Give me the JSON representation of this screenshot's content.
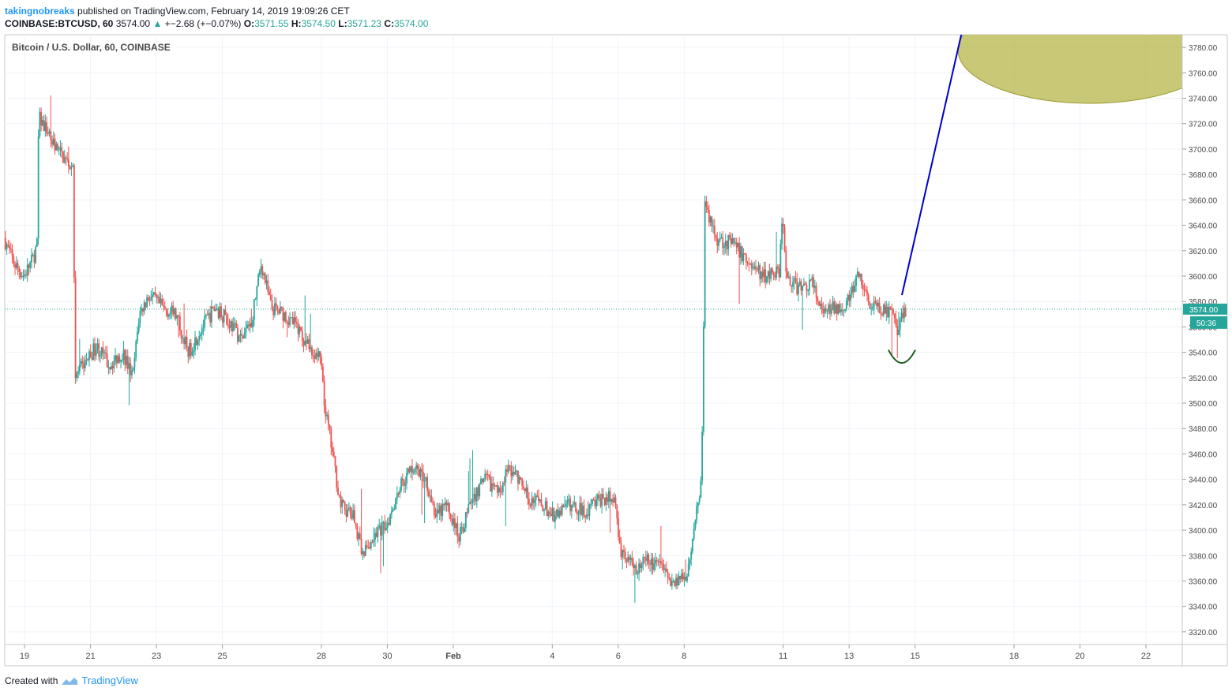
{
  "header": {
    "author": "takingnobreaks",
    "published_text": "published on TradingView.com, February 14, 2019 19:09:26 CET",
    "symbol": "COINBASE:BTCUSD, 60",
    "last": "3574.00",
    "change": "+−2.68 (+−0.07%)",
    "o_label": "O:",
    "o_value": "3571.55",
    "h_label": "H:",
    "h_value": "3574.50",
    "l_label": "L:",
    "l_value": "3571.23",
    "c_label": "C:",
    "c_value": "3574.00"
  },
  "footer": {
    "created_with": "Created with",
    "brand": "TradingView"
  },
  "chart_data": {
    "type": "candlestick",
    "title": "Bitcoin / U.S. Dollar, 60, COINBASE",
    "ylim": [
      3310,
      3790
    ],
    "y_ticks": [
      3320,
      3340,
      3360,
      3380,
      3400,
      3420,
      3440,
      3460,
      3480,
      3500,
      3520,
      3540,
      3560,
      3580,
      3600,
      3620,
      3640,
      3660,
      3680,
      3700,
      3720,
      3740,
      3760,
      3780
    ],
    "y_tick_labels": [
      "3320.00",
      "3340.00",
      "3360.00",
      "3380.00",
      "3400.00",
      "3420.00",
      "3440.00",
      "3460.00",
      "3480.00",
      "3500.00",
      "3520.00",
      "3540.00",
      "3560.00",
      "3580.00",
      "3600.00",
      "3620.00",
      "3640.00",
      "3660.00",
      "3680.00",
      "3700.00",
      "3720.00",
      "3740.00",
      "3760.00",
      "3780.00"
    ],
    "x_ticks": [
      {
        "day": 0,
        "label": "19"
      },
      {
        "day": 2,
        "label": "21"
      },
      {
        "day": 4,
        "label": "23"
      },
      {
        "day": 6,
        "label": "25"
      },
      {
        "day": 9,
        "label": "28"
      },
      {
        "day": 11,
        "label": "30"
      },
      {
        "day": 13,
        "label": "Feb"
      },
      {
        "day": 16,
        "label": "4"
      },
      {
        "day": 18,
        "label": "6"
      },
      {
        "day": 20,
        "label": "8"
      },
      {
        "day": 23,
        "label": "11"
      },
      {
        "day": 25,
        "label": "13"
      },
      {
        "day": 27,
        "label": "15"
      },
      {
        "day": 30,
        "label": "18"
      },
      {
        "day": 32,
        "label": "20"
      },
      {
        "day": 34,
        "label": "22"
      }
    ],
    "x_range_days": [
      -0.6,
      35.1
    ],
    "price_path": [
      [
        -0.6,
        3630
      ],
      [
        -0.3,
        3610
      ],
      [
        0.0,
        3600
      ],
      [
        0.3,
        3615
      ],
      [
        0.4,
        3625
      ],
      [
        0.45,
        3725
      ],
      [
        0.7,
        3715
      ],
      [
        1.0,
        3700
      ],
      [
        1.3,
        3690
      ],
      [
        1.5,
        3688
      ],
      [
        1.55,
        3520
      ],
      [
        1.8,
        3530
      ],
      [
        2.2,
        3545
      ],
      [
        2.6,
        3530
      ],
      [
        3.0,
        3540
      ],
      [
        3.3,
        3520
      ],
      [
        3.5,
        3570
      ],
      [
        3.8,
        3585
      ],
      [
        4.2,
        3575
      ],
      [
        4.6,
        3570
      ],
      [
        5.0,
        3540
      ],
      [
        5.4,
        3560
      ],
      [
        5.8,
        3575
      ],
      [
        6.2,
        3565
      ],
      [
        6.6,
        3550
      ],
      [
        6.9,
        3565
      ],
      [
        7.2,
        3610
      ],
      [
        7.5,
        3575
      ],
      [
        7.9,
        3570
      ],
      [
        8.3,
        3560
      ],
      [
        8.7,
        3540
      ],
      [
        9.0,
        3535
      ],
      [
        9.1,
        3500
      ],
      [
        9.3,
        3470
      ],
      [
        9.6,
        3420
      ],
      [
        10.0,
        3410
      ],
      [
        10.3,
        3380
      ],
      [
        10.6,
        3395
      ],
      [
        11.0,
        3405
      ],
      [
        11.4,
        3435
      ],
      [
        11.8,
        3450
      ],
      [
        12.2,
        3440
      ],
      [
        12.5,
        3410
      ],
      [
        12.8,
        3420
      ],
      [
        13.2,
        3395
      ],
      [
        13.6,
        3425
      ],
      [
        14.0,
        3440
      ],
      [
        14.4,
        3430
      ],
      [
        14.7,
        3450
      ],
      [
        15.0,
        3440
      ],
      [
        15.3,
        3425
      ],
      [
        15.7,
        3420
      ],
      [
        16.1,
        3410
      ],
      [
        16.5,
        3420
      ],
      [
        17.0,
        3415
      ],
      [
        17.5,
        3425
      ],
      [
        17.9,
        3425
      ],
      [
        18.1,
        3385
      ],
      [
        18.5,
        3370
      ],
      [
        18.9,
        3375
      ],
      [
        19.3,
        3370
      ],
      [
        19.7,
        3360
      ],
      [
        20.1,
        3365
      ],
      [
        20.3,
        3400
      ],
      [
        20.55,
        3440
      ],
      [
        20.65,
        3655
      ],
      [
        21.0,
        3630
      ],
      [
        21.5,
        3625
      ],
      [
        22.0,
        3610
      ],
      [
        22.4,
        3600
      ],
      [
        22.9,
        3605
      ],
      [
        23.0,
        3650
      ],
      [
        23.1,
        3600
      ],
      [
        23.5,
        3590
      ],
      [
        23.9,
        3595
      ],
      [
        24.2,
        3570
      ],
      [
        24.6,
        3575
      ],
      [
        25.0,
        3580
      ],
      [
        25.3,
        3600
      ],
      [
        25.7,
        3575
      ],
      [
        26.0,
        3575
      ],
      [
        26.3,
        3570
      ],
      [
        26.5,
        3555
      ],
      [
        26.7,
        3574
      ]
    ],
    "last_price": 3574.0,
    "countdown": "50:36",
    "annotations": {
      "trend_line": {
        "from": [
          26.6,
          3585
        ],
        "to": [
          28.4,
          3790
        ],
        "color": "#0000cd"
      },
      "target_zone": {
        "center": [
          32.3,
          3778
        ],
        "radius_days": 4.0,
        "radius_price": 14,
        "color": "#b5b54a"
      },
      "bottom_arc": {
        "center": [
          26.6,
          3540
        ],
        "color": "#1b5e20"
      }
    }
  }
}
